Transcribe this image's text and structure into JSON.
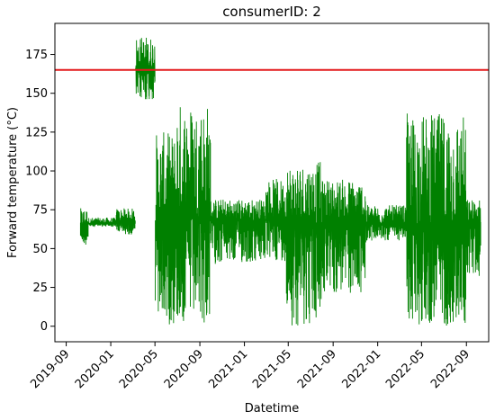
{
  "chart_data": {
    "type": "line",
    "title": "consumerID: 2",
    "xlabel": "Datetime",
    "ylabel": "Forward temperature (°C)",
    "xlim": [
      "2019-08-01",
      "2022-11-01"
    ],
    "ylim": [
      -10,
      195
    ],
    "x_ticks": [
      "2019-09",
      "2020-01",
      "2020-05",
      "2020-09",
      "2021-01",
      "2021-05",
      "2021-09",
      "2022-01",
      "2022-05",
      "2022-09"
    ],
    "y_ticks": [
      0,
      25,
      50,
      75,
      100,
      125,
      150,
      175
    ],
    "threshold": {
      "value": 165,
      "color": "#e41a1c"
    },
    "series": [
      {
        "color": "#008000",
        "segments": [
          {
            "start": "2019-10-10",
            "end": "2019-10-31",
            "low": 52,
            "high": 76,
            "base": 65
          },
          {
            "start": "2019-11-01",
            "end": "2020-01-15",
            "low": 64,
            "high": 70,
            "base": 66
          },
          {
            "start": "2020-01-16",
            "end": "2020-03-08",
            "low": 59,
            "high": 76,
            "base": 67
          },
          {
            "start": "2020-03-09",
            "end": "2020-05-01",
            "low": 145,
            "high": 187,
            "base": 165
          },
          {
            "start": "2020-05-02",
            "end": "2020-06-30",
            "low": 0,
            "high": 125,
            "base": 68
          },
          {
            "start": "2020-07-01",
            "end": "2020-09-30",
            "low": 0,
            "high": 145,
            "base": 70
          },
          {
            "start": "2020-10-01",
            "end": "2021-02-28",
            "low": 40,
            "high": 82,
            "base": 68
          },
          {
            "start": "2021-03-01",
            "end": "2021-04-25",
            "low": 42,
            "high": 95,
            "base": 68
          },
          {
            "start": "2021-04-26",
            "end": "2021-07-31",
            "low": 0,
            "high": 106,
            "base": 65
          },
          {
            "start": "2021-08-01",
            "end": "2021-11-30",
            "low": 20,
            "high": 95,
            "base": 66
          },
          {
            "start": "2021-12-01",
            "end": "2022-03-20",
            "low": 55,
            "high": 78,
            "base": 66
          },
          {
            "start": "2022-03-21",
            "end": "2022-08-31",
            "low": 0,
            "high": 137,
            "base": 64
          },
          {
            "start": "2022-09-01",
            "end": "2022-10-10",
            "low": 32,
            "high": 82,
            "base": 66
          }
        ]
      }
    ]
  }
}
